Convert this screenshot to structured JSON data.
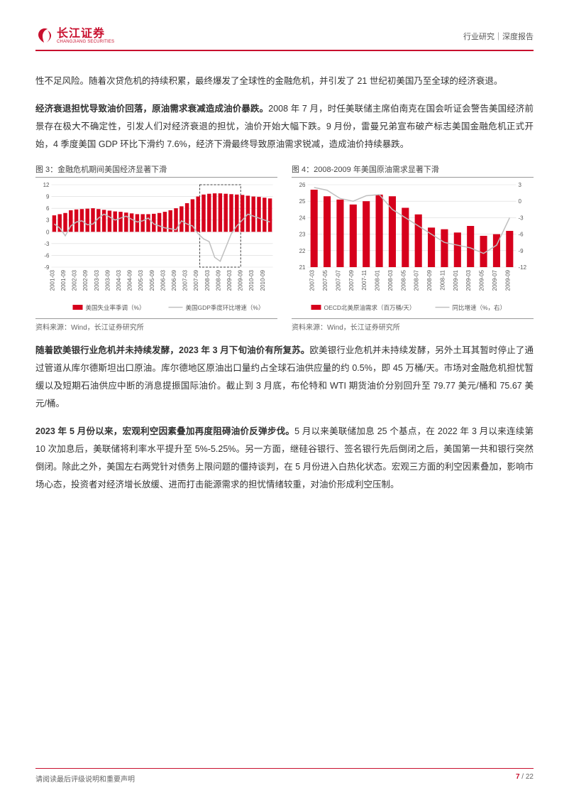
{
  "header": {
    "logo_cn": "长江证券",
    "logo_en": "CHANGJIANG SECURITIES",
    "right": "行业研究｜深度报告"
  },
  "paragraphs": {
    "p1": "性不足风险。随着次贷危机的持续积累，最终爆发了全球性的金融危机，并引发了 21 世纪初美国乃至全球的经济衰退。",
    "p2_bold": "经济衰退担忧导致油价回落，原油需求衰减造成油价暴跌。",
    "p2_rest": "2008 年 7 月，时任美联储主席伯南克在国会听证会警告美国经济前景存在极大不确定性，引发人们对经济衰退的担忧，油价开始大幅下跌。9 月份，雷曼兄弟宣布破产标志美国金融危机正式开始，4 季度美国 GDP 环比下滑约 7.6%，经济下滑最终导致原油需求锐减，造成油价持续暴跌。",
    "p3_bold": "随着欧美银行业危机并未持续发酵，2023 年 3 月下旬油价有所复苏。",
    "p3_rest": "欧美银行业危机并未持续发酵，另外土耳其暂时停止了通过管道从库尔德斯坦出口原油。库尔德地区原油出口量约占全球石油供应量的约 0.5%，即 45 万桶/天。市场对金融危机担忧暂缓以及短期石油供应中断的消息提振国际油价。截止到 3 月底，布伦特和 WTI 期货油价分别回升至 79.77 美元/桶和 75.67 美元/桶。",
    "p4_bold": "2023 年 5 月份以来，宏观利空因素叠加再度阻碍油价反弹步伐。",
    "p4_rest": "5 月以来美联储加息 25 个基点，在 2022 年 3 月以来连续第 10 次加息后，美联储将利率水平提升至 5%-5.25%。另一方面，继硅谷银行、签名银行先后倒闭之后，美国第一共和银行突然倒闭。除此之外，美国左右两党针对债务上限问题的僵持谈判，在 5 月份进入白热化状态。宏观三方面的利空因素叠加，影响市场心态，投资者对经济增长放缓、进而打击能源需求的担忧情绪较重，对油价形成利空压制。"
  },
  "chart3": {
    "title": "图 3：金融危机期间美国经济显著下滑",
    "source": "资料来源：Wind，长江证券研究所",
    "ylim": [
      -9,
      12
    ],
    "yticks": [
      -9,
      -6,
      -3,
      0,
      3,
      6,
      9,
      12
    ],
    "x_labels": [
      "2001-03",
      "2001-09",
      "2002-03",
      "2002-09",
      "2003-03",
      "2003-09",
      "2004-03",
      "2004-09",
      "2005-03",
      "2005-09",
      "2006-03",
      "2006-09",
      "2007-03",
      "2007-09",
      "2008-03",
      "2008-09",
      "2009-03",
      "2009-09",
      "2010-03",
      "2010-09"
    ],
    "bars": [
      4.2,
      4.5,
      4.8,
      5.5,
      5.7,
      5.8,
      5.9,
      6.0,
      5.8,
      5.6,
      5.4,
      5.2,
      5.1,
      4.9,
      4.7,
      4.5,
      4.5,
      4.5,
      4.6,
      4.8,
      5.1,
      5.5,
      6.0,
      6.5,
      7.3,
      8.3,
      9.0,
      9.5,
      9.7,
      9.8,
      9.8,
      9.7,
      9.6,
      9.5,
      9.4,
      9.2,
      9.0,
      8.9,
      8.7,
      8.5
    ],
    "line": [
      2.0,
      1.0,
      -1.0,
      1.5,
      2.5,
      2.8,
      1.8,
      2.0,
      3.5,
      4.5,
      3.8,
      3.0,
      3.5,
      4.0,
      3.2,
      2.5,
      2.8,
      3.5,
      2.0,
      1.5,
      1.0,
      0.8,
      0.5,
      2.8,
      2.0,
      1.5,
      -0.5,
      -1.8,
      -2.5,
      -6.5,
      -7.5,
      -4.0,
      -0.5,
      1.5,
      3.0,
      4.5,
      4.0,
      3.5,
      3.0,
      2.5
    ],
    "highlight_start": 27,
    "highlight_end": 33,
    "legend_bar": "美国失业率季调（%）",
    "legend_line": "美国GDP季度环比增速（%）",
    "bar_color": "#d6001c",
    "line_color": "#bfbfbf",
    "grid_color": "#d9d9d9",
    "text_color": "#595959",
    "axis_fontsize": 8
  },
  "chart4": {
    "title": "图 4：2008-2009 年美国原油需求显著下滑",
    "source": "资料来源：Wind，长江证券研究所",
    "y1lim": [
      21,
      26
    ],
    "y1ticks": [
      21,
      22,
      23,
      24,
      25,
      26
    ],
    "y2lim": [
      -12,
      3
    ],
    "y2ticks": [
      -12,
      -9,
      -6,
      -3,
      0,
      3
    ],
    "x_labels": [
      "2007-03",
      "2007-05",
      "2007-07",
      "2007-09",
      "2007-11",
      "2008-01",
      "2008-03",
      "2008-05",
      "2008-07",
      "2008-09",
      "2008-11",
      "2009-01",
      "2009-03",
      "2009-05",
      "2009-07",
      "2009-09"
    ],
    "bars": [
      25.7,
      25.3,
      25.1,
      24.8,
      25.0,
      25.4,
      25.3,
      24.6,
      24.2,
      23.4,
      23.3,
      23.1,
      23.5,
      22.9,
      23.0,
      23.2
    ],
    "line": [
      2.5,
      2.0,
      0.5,
      0.0,
      1.0,
      1.2,
      -1.5,
      -3.0,
      -4.5,
      -6.0,
      -7.5,
      -8.0,
      -8.5,
      -9.5,
      -8.0,
      -3.0
    ],
    "legend_bar": "OECD北美原油需求（百万桶/天）",
    "legend_line": "同比增速（%，右）",
    "bar_color": "#d6001c",
    "line_color": "#bfbfbf",
    "grid_color": "#d9d9d9",
    "text_color": "#595959",
    "axis_fontsize": 8
  },
  "footer": {
    "left": "请阅读最后评级说明和重要声明",
    "page_cur": "7",
    "page_total": "22"
  },
  "colors": {
    "brand_red": "#c8102e",
    "text": "#333333"
  }
}
